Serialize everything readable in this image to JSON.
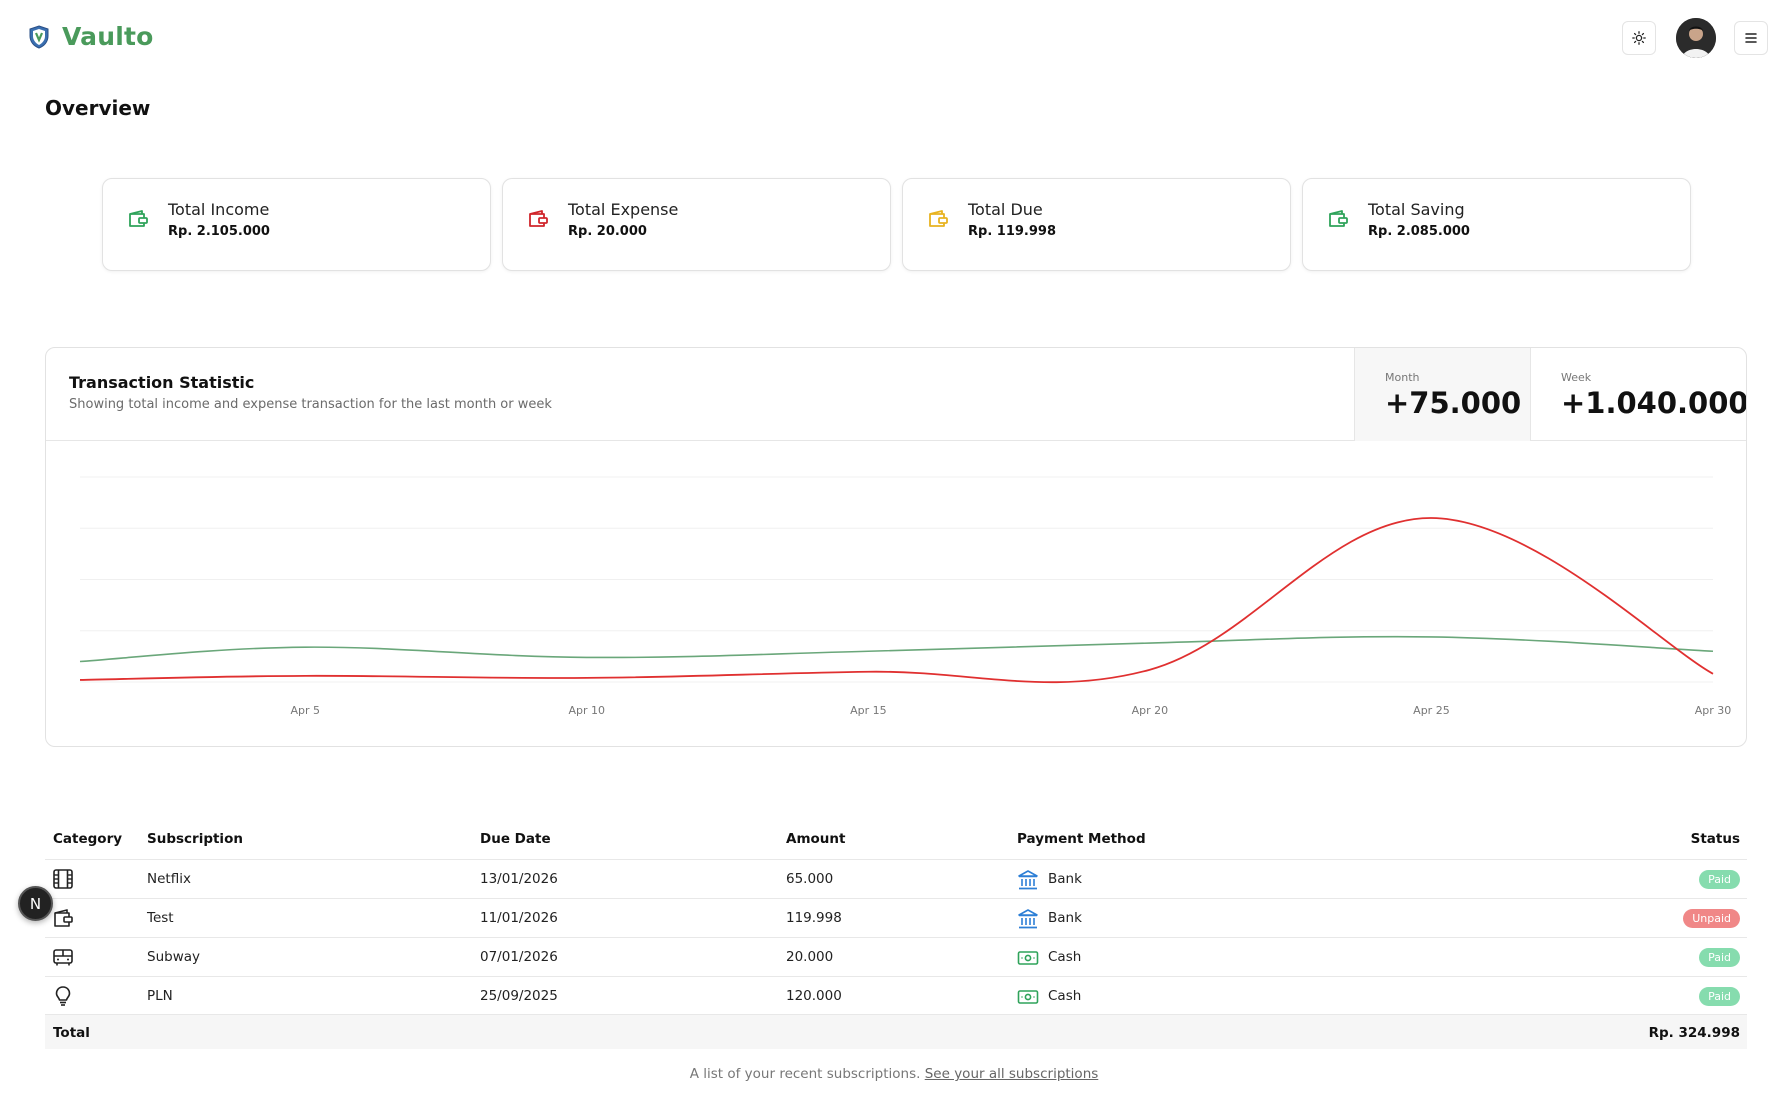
{
  "app": {
    "name": "Vaulto",
    "logo_icon": "shield-icon"
  },
  "header": {
    "theme_icon": "sun-icon",
    "menu_icon": "hamburger-icon"
  },
  "page": {
    "title": "Overview"
  },
  "cards": [
    {
      "label": "Total Income",
      "value": "Rp. 2.105.000",
      "icon": "wallet-icon",
      "color": "#2fa35a"
    },
    {
      "label": "Total Expense",
      "value": "Rp. 20.000",
      "icon": "wallet-icon",
      "color": "#d0252b"
    },
    {
      "label": "Total Due",
      "value": "Rp. 119.998",
      "icon": "wallet-icon",
      "color": "#e8b320"
    },
    {
      "label": "Total Saving",
      "value": "Rp. 2.085.000",
      "icon": "wallet-icon",
      "color": "#2fa35a"
    }
  ],
  "statistic": {
    "title": "Transaction Statistic",
    "subtitle": "Showing total income and expense transaction for the last month or week",
    "month_label": "Month",
    "month_value": "+75.000",
    "week_label": "Week",
    "week_value": "+1.040.000"
  },
  "chart_data": {
    "type": "line",
    "x_ticks": [
      "Apr 5",
      "Apr 10",
      "Apr 15",
      "Apr 20",
      "Apr 25",
      "Apr 30"
    ],
    "x": [
      1,
      5,
      10,
      15,
      20,
      25,
      30
    ],
    "ylim": [
      0,
      100
    ],
    "grid": true,
    "legend": "none",
    "series": [
      {
        "color": "#6aa77a",
        "values": [
          10,
          17,
          12,
          15,
          19,
          22,
          15
        ]
      },
      {
        "color": "#e03030",
        "values": [
          1,
          3,
          2,
          5,
          6,
          80,
          4
        ]
      }
    ]
  },
  "table": {
    "headers": {
      "category": "Category",
      "subscription": "Subscription",
      "due_date": "Due Date",
      "amount": "Amount",
      "payment_method": "Payment Method",
      "status": "Status"
    },
    "rows": [
      {
        "category_icon": "film-icon",
        "subscription": "Netflix",
        "due_date": "13/01/2026",
        "amount": "65.000",
        "method_icon": "bank-icon",
        "method": "Bank",
        "status": "Paid"
      },
      {
        "category_icon": "wallet-icon",
        "subscription": "Test",
        "due_date": "11/01/2026",
        "amount": "119.998",
        "method_icon": "bank-icon",
        "method": "Bank",
        "status": "Unpaid"
      },
      {
        "category_icon": "bus-icon",
        "subscription": "Subway",
        "due_date": "07/01/2026",
        "amount": "20.000",
        "method_icon": "cash-icon",
        "method": "Cash",
        "status": "Paid"
      },
      {
        "category_icon": "lightbulb-icon",
        "subscription": "PLN",
        "due_date": "25/09/2025",
        "amount": "120.000",
        "method_icon": "cash-icon",
        "method": "Cash",
        "status": "Paid"
      }
    ],
    "total_label": "Total",
    "total_value": "Rp. 324.998",
    "caption": "A list of your recent subscriptions.",
    "caption_link": "See your all subscriptions"
  },
  "dev_badge": "N"
}
